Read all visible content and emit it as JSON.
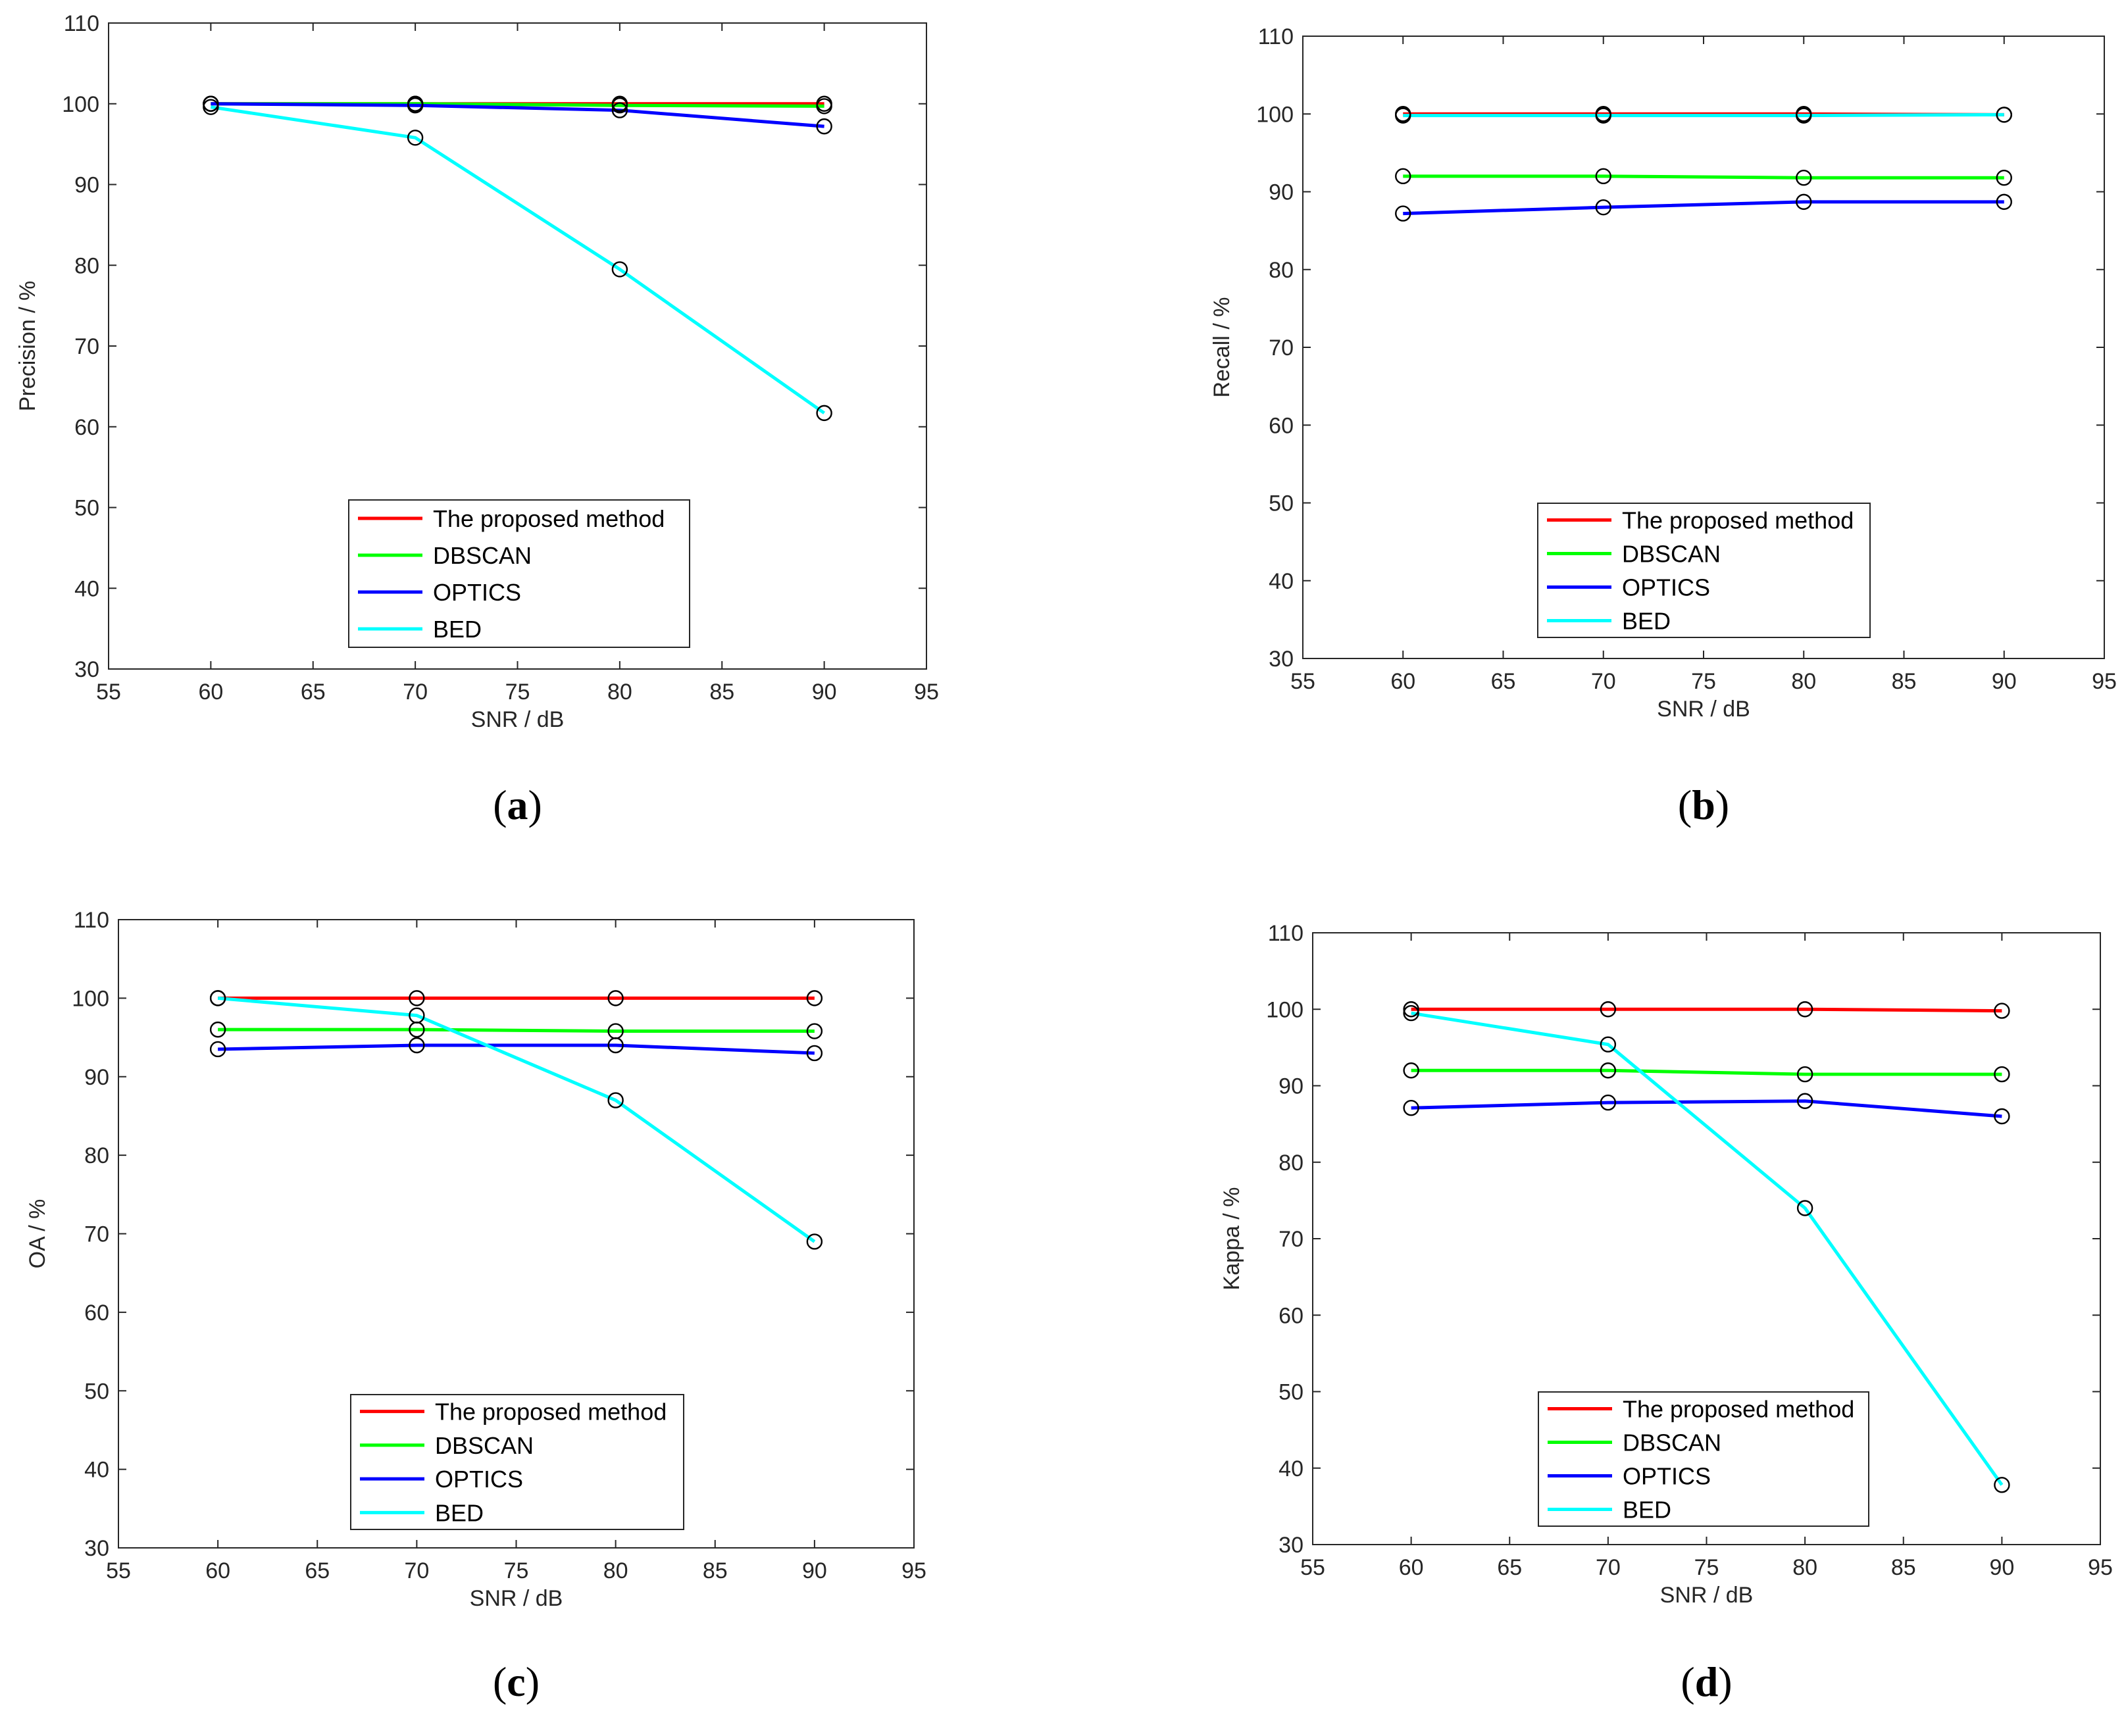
{
  "figure": {
    "panel_labels": [
      "a",
      "b",
      "c",
      "d"
    ]
  },
  "series_colors": {
    "The proposed method": "#ff0000",
    "DBSCAN": "#00ff00",
    "OPTICS": "#0000ff",
    "BED": "#00ffff"
  },
  "marker": {
    "shape": "circle-open",
    "color": "#000000"
  },
  "chart_data": [
    {
      "id": "a",
      "type": "line",
      "xlabel": "SNR / dB",
      "ylabel": "Precision / %",
      "xlim": [
        55,
        95
      ],
      "ylim": [
        30,
        110
      ],
      "xticks": [
        55,
        60,
        65,
        70,
        75,
        80,
        85,
        90,
        95
      ],
      "yticks": [
        30,
        40,
        50,
        60,
        70,
        80,
        90,
        100,
        110
      ],
      "legend_location": "bottom-center",
      "x": [
        60,
        70,
        80,
        90
      ],
      "series": [
        {
          "name": "The proposed method",
          "values": [
            100,
            100,
            100,
            100
          ]
        },
        {
          "name": "DBSCAN",
          "values": [
            100,
            100,
            99.8,
            99.7
          ]
        },
        {
          "name": "OPTICS",
          "values": [
            100,
            99.8,
            99.2,
            97.2
          ]
        },
        {
          "name": "BED",
          "values": [
            99.6,
            95.8,
            79.5,
            61.7
          ]
        }
      ]
    },
    {
      "id": "b",
      "type": "line",
      "xlabel": "SNR / dB",
      "ylabel": "Recall / %",
      "xlim": [
        55,
        95
      ],
      "ylim": [
        30,
        110
      ],
      "xticks": [
        55,
        60,
        65,
        70,
        75,
        80,
        85,
        90,
        95
      ],
      "yticks": [
        30,
        40,
        50,
        60,
        70,
        80,
        90,
        100,
        110
      ],
      "legend_location": "bottom-center",
      "x": [
        60,
        70,
        80,
        90
      ],
      "series": [
        {
          "name": "The proposed method",
          "values": [
            100,
            100,
            100,
            99.9
          ]
        },
        {
          "name": "DBSCAN",
          "values": [
            92,
            92,
            91.8,
            91.8
          ]
        },
        {
          "name": "OPTICS",
          "values": [
            87.2,
            88,
            88.7,
            88.7
          ]
        },
        {
          "name": "BED",
          "values": [
            99.8,
            99.8,
            99.8,
            99.9
          ]
        }
      ]
    },
    {
      "id": "c",
      "type": "line",
      "xlabel": "SNR / dB",
      "ylabel": "OA / %",
      "xlim": [
        55,
        95
      ],
      "ylim": [
        30,
        110
      ],
      "xticks": [
        55,
        60,
        65,
        70,
        75,
        80,
        85,
        90,
        95
      ],
      "yticks": [
        30,
        40,
        50,
        60,
        70,
        80,
        90,
        100,
        110
      ],
      "legend_location": "bottom-center",
      "x": [
        60,
        70,
        80,
        90
      ],
      "series": [
        {
          "name": "The proposed method",
          "values": [
            100,
            100,
            100,
            100
          ]
        },
        {
          "name": "DBSCAN",
          "values": [
            96,
            96,
            95.8,
            95.8
          ]
        },
        {
          "name": "OPTICS",
          "values": [
            93.5,
            94,
            94,
            93
          ]
        },
        {
          "name": "BED",
          "values": [
            100,
            97.8,
            87,
            69
          ]
        }
      ]
    },
    {
      "id": "d",
      "type": "line",
      "xlabel": "SNR / dB",
      "ylabel": "Kappa / %",
      "xlim": [
        55,
        95
      ],
      "ylim": [
        30,
        110
      ],
      "xticks": [
        55,
        60,
        65,
        70,
        75,
        80,
        85,
        90,
        95
      ],
      "yticks": [
        30,
        40,
        50,
        60,
        70,
        80,
        90,
        100,
        110
      ],
      "legend_location": "bottom-center",
      "x": [
        60,
        70,
        80,
        90
      ],
      "series": [
        {
          "name": "The proposed method",
          "values": [
            100,
            100,
            100,
            99.8
          ]
        },
        {
          "name": "DBSCAN",
          "values": [
            92,
            92,
            91.5,
            91.5
          ]
        },
        {
          "name": "OPTICS",
          "values": [
            87.1,
            87.8,
            88,
            86
          ]
        },
        {
          "name": "BED",
          "values": [
            99.5,
            95.4,
            74,
            37.8
          ]
        }
      ]
    }
  ]
}
